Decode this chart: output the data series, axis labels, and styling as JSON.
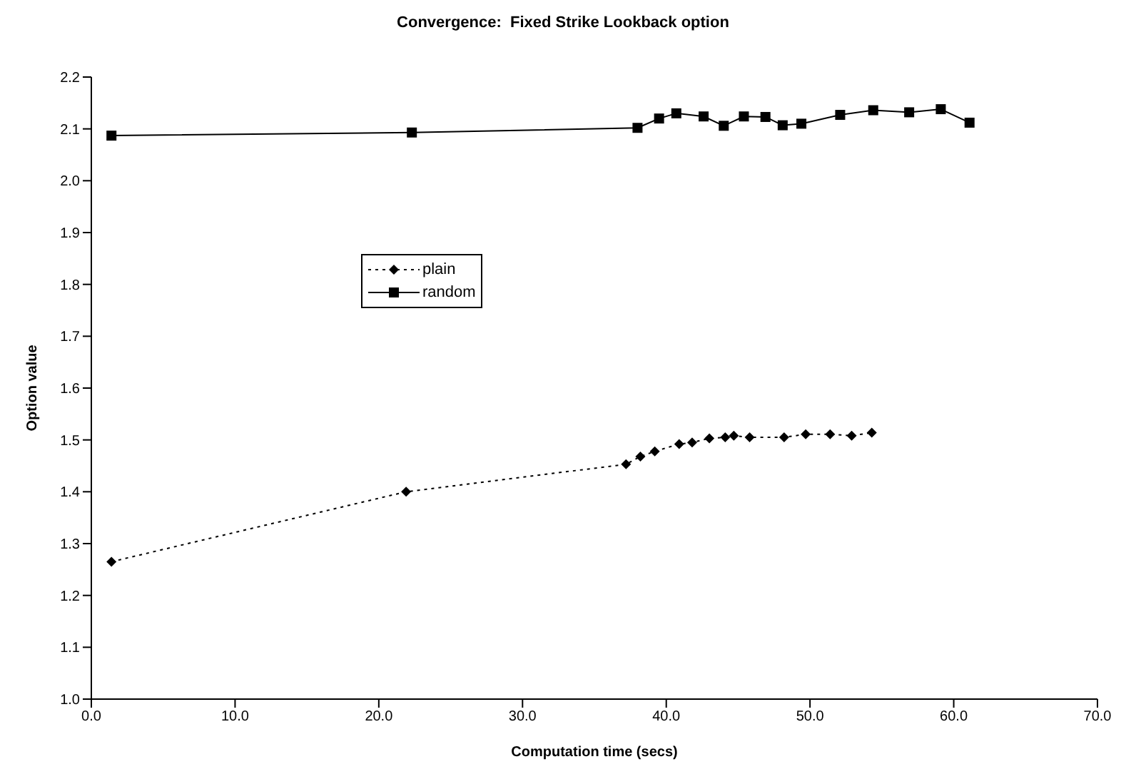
{
  "chart_data": {
    "type": "line",
    "title": "Convergence:  Fixed Strike Lookback option",
    "xlabel": "Computation time (secs)",
    "ylabel": "Option value",
    "xlim": [
      0,
      70
    ],
    "xticks": [
      {
        "value": 0,
        "label": "0.0"
      },
      {
        "value": 10,
        "label": "10.0"
      },
      {
        "value": 20,
        "label": "20.0"
      },
      {
        "value": 30,
        "label": "30.0"
      },
      {
        "value": 40,
        "label": "40.0"
      },
      {
        "value": 50,
        "label": "50.0"
      },
      {
        "value": 60,
        "label": "60.0"
      },
      {
        "value": 70,
        "label": "70.0"
      }
    ],
    "ylim": [
      1,
      2.2
    ],
    "yticks": [
      {
        "value": 1,
        "label": "1.0"
      },
      1.1,
      1.2,
      1.3,
      1.4,
      1.5,
      1.6,
      1.7,
      1.8,
      1.9,
      {
        "value": 2,
        "label": "2.0"
      },
      2.1,
      2.2
    ],
    "grid": false,
    "legend": "center",
    "series": [
      {
        "name": "plain",
        "color": "#000000",
        "marker": "diamond",
        "line_style": "dotted",
        "x": [
          1.4,
          21.9,
          37.2,
          38.2,
          39.2,
          40.9,
          41.8,
          43.0,
          44.1,
          44.7,
          45.8,
          48.2,
          49.7,
          51.4,
          52.9,
          54.3
        ],
        "values": [
          1.265,
          1.4,
          1.453,
          1.468,
          1.478,
          1.492,
          1.495,
          1.503,
          1.505,
          1.508,
          1.505,
          1.505,
          1.511,
          1.511,
          1.508,
          1.514
        ]
      },
      {
        "name": "random",
        "color": "#000000",
        "marker": "square",
        "line_style": "solid",
        "x": [
          1.4,
          22.3,
          38.0,
          39.5,
          40.7,
          42.6,
          44.0,
          45.4,
          46.9,
          48.1,
          49.4,
          52.1,
          54.4,
          56.9,
          59.1,
          61.1
        ],
        "values": [
          2.087,
          2.093,
          2.102,
          2.12,
          2.13,
          2.124,
          2.106,
          2.124,
          2.123,
          2.107,
          2.11,
          2.127,
          2.136,
          2.132,
          2.138,
          2.112
        ]
      }
    ]
  }
}
